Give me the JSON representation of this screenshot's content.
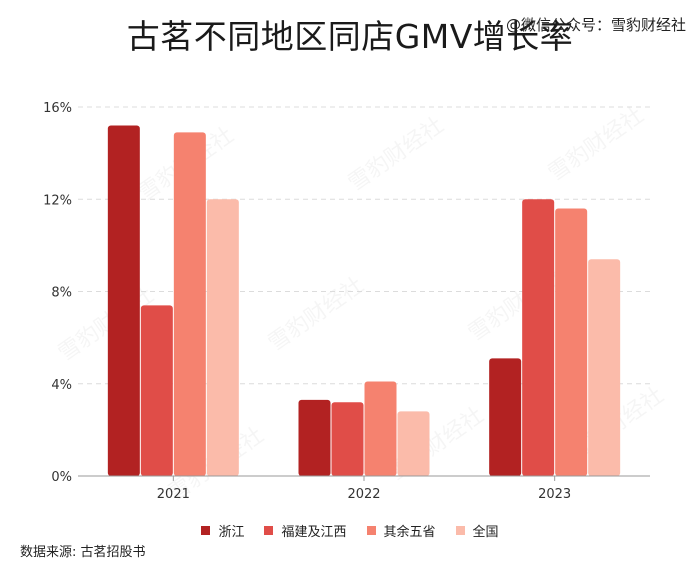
{
  "header": {
    "title": "古茗不同地区同店GMV增长率",
    "watermark_tag": "@微信公众号：雪豹财经社"
  },
  "footer": {
    "source": "数据来源: 古茗招股书"
  },
  "chart_data": {
    "type": "bar",
    "categories": [
      "2021",
      "2022",
      "2023"
    ],
    "series": [
      {
        "name": "浙江",
        "color": "#b22222",
        "values": [
          15.2,
          3.3,
          5.1
        ]
      },
      {
        "name": "福建及江西",
        "color": "#e04d48",
        "values": [
          7.4,
          3.2,
          12.0
        ]
      },
      {
        "name": "其余五省",
        "color": "#f5826f",
        "values": [
          14.9,
          4.1,
          11.6
        ]
      },
      {
        "name": "全国",
        "color": "#fbbbaa",
        "values": [
          12.0,
          2.8,
          9.4
        ]
      }
    ],
    "ylim": [
      0,
      16
    ],
    "yticks": [
      0,
      4,
      8,
      12,
      16
    ],
    "ytick_labels": [
      "0%",
      "4%",
      "8%",
      "12%",
      "16%"
    ],
    "grid": "horizontal dashed",
    "legend_position": "bottom-center"
  }
}
